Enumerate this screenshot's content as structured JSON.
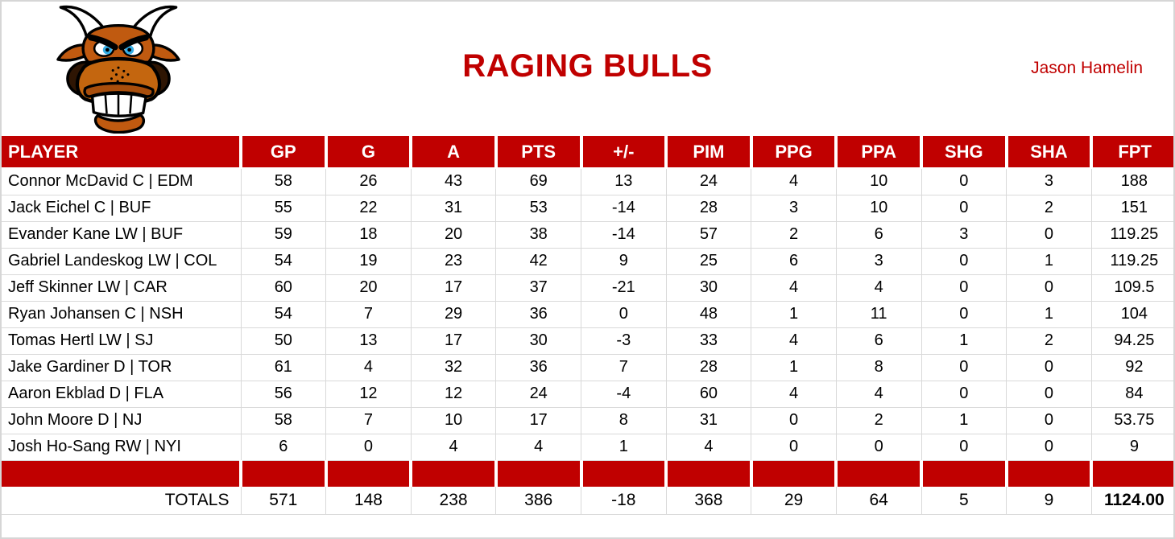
{
  "header": {
    "title": "RAGING BULLS",
    "owner": "Jason Hamelin",
    "logo_icon": "bull-head-icon"
  },
  "colors": {
    "accent_red": "#C00000",
    "grid": "#D9D9D9",
    "header_text": "#FFFFFF",
    "text": "#000000"
  },
  "table": {
    "columns": [
      "PLAYER",
      "GP",
      "G",
      "A",
      "PTS",
      "+/-",
      "PIM",
      "PPG",
      "PPA",
      "SHG",
      "SHA",
      "FPT"
    ],
    "players": [
      {
        "name": "Connor McDavid C | EDM",
        "values": [
          "58",
          "26",
          "43",
          "69",
          "13",
          "24",
          "4",
          "10",
          "0",
          "3",
          "188"
        ]
      },
      {
        "name": "Jack Eichel C | BUF",
        "values": [
          "55",
          "22",
          "31",
          "53",
          "-14",
          "28",
          "3",
          "10",
          "0",
          "2",
          "151"
        ]
      },
      {
        "name": "Evander Kane LW | BUF",
        "values": [
          "59",
          "18",
          "20",
          "38",
          "-14",
          "57",
          "2",
          "6",
          "3",
          "0",
          "119.25"
        ]
      },
      {
        "name": "Gabriel Landeskog LW | COL",
        "values": [
          "54",
          "19",
          "23",
          "42",
          "9",
          "25",
          "6",
          "3",
          "0",
          "1",
          "119.25"
        ]
      },
      {
        "name": "Jeff Skinner LW | CAR",
        "values": [
          "60",
          "20",
          "17",
          "37",
          "-21",
          "30",
          "4",
          "4",
          "0",
          "0",
          "109.5"
        ]
      },
      {
        "name": "Ryan Johansen C | NSH",
        "values": [
          "54",
          "7",
          "29",
          "36",
          "0",
          "48",
          "1",
          "11",
          "0",
          "1",
          "104"
        ]
      },
      {
        "name": "Tomas Hertl LW | SJ",
        "values": [
          "50",
          "13",
          "17",
          "30",
          "-3",
          "33",
          "4",
          "6",
          "1",
          "2",
          "94.25"
        ]
      },
      {
        "name": "Jake Gardiner D | TOR",
        "values": [
          "61",
          "4",
          "32",
          "36",
          "7",
          "28",
          "1",
          "8",
          "0",
          "0",
          "92"
        ]
      },
      {
        "name": "Aaron Ekblad D | FLA",
        "values": [
          "56",
          "12",
          "12",
          "24",
          "-4",
          "60",
          "4",
          "4",
          "0",
          "0",
          "84"
        ]
      },
      {
        "name": "John Moore D | NJ",
        "values": [
          "58",
          "7",
          "10",
          "17",
          "8",
          "31",
          "0",
          "2",
          "1",
          "0",
          "53.75"
        ]
      },
      {
        "name": "Josh Ho-Sang RW | NYI",
        "values": [
          "6",
          "0",
          "4",
          "4",
          "1",
          "4",
          "0",
          "0",
          "0",
          "0",
          "9"
        ]
      }
    ],
    "totals": {
      "label": "TOTALS",
      "values": [
        "571",
        "148",
        "238",
        "386",
        "-18",
        "368",
        "29",
        "64",
        "5",
        "9",
        "1124.00"
      ]
    }
  }
}
